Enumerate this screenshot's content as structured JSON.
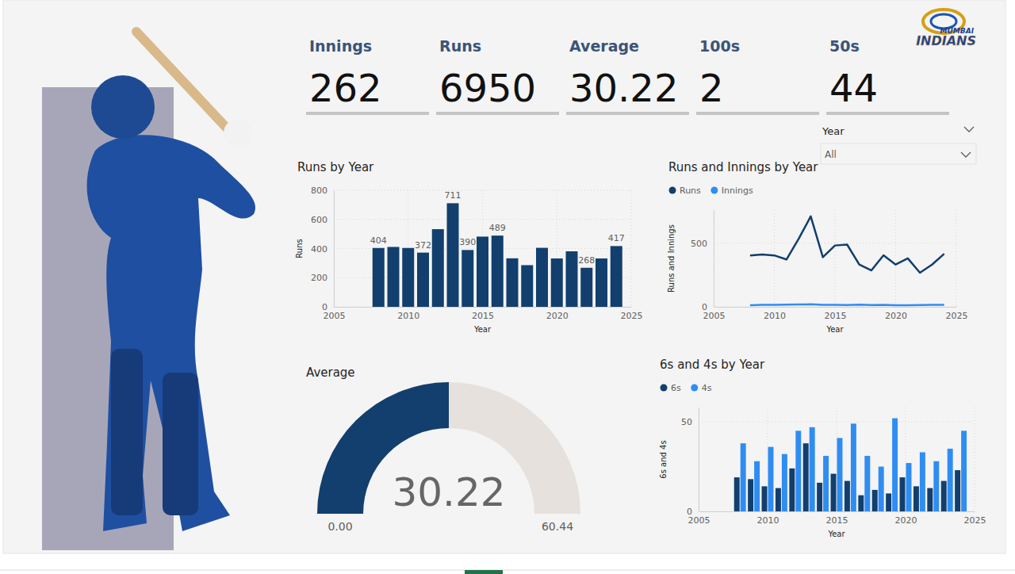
{
  "cards": [
    {
      "label": "Innings",
      "value": 262
    },
    {
      "label": "Runs",
      "value": 6950
    },
    {
      "label": "Average",
      "value": 30.22
    },
    {
      "label": "100s",
      "value": 2
    },
    {
      "label": "50s",
      "value": 44
    }
  ],
  "slicer": {
    "label": "Year",
    "value": "All"
  },
  "logo": [
    "MUMBAI",
    "INDIANS"
  ],
  "chart_data": [
    {
      "type": "bar",
      "title": "Runs by Year",
      "xlabel": "Year",
      "ylabel": "Runs",
      "x": [
        2008,
        2009,
        2010,
        2011,
        2012,
        2013,
        2014,
        2015,
        2016,
        2017,
        2018,
        2019,
        2020,
        2021,
        2022,
        2023,
        2024
      ],
      "values": [
        404,
        411,
        404,
        372,
        533,
        711,
        390,
        482,
        489,
        333,
        286,
        405,
        332,
        381,
        268,
        332,
        417
      ],
      "value_labels": [
        "404",
        null,
        null,
        "372",
        null,
        "711",
        "390",
        null,
        "489",
        null,
        null,
        null,
        null,
        null,
        "268",
        null,
        "417"
      ],
      "data_labels": true,
      "color": "#123f6d",
      "xlim": [
        2005,
        2025
      ],
      "xticks": [
        2005,
        2010,
        2015,
        2020,
        2025
      ],
      "ylim": [
        0,
        800
      ],
      "yticks": [
        0,
        200,
        400,
        600,
        800
      ],
      "grid": true
    },
    {
      "type": "line",
      "title": "Runs and Innings by Year",
      "xlabel": "Year",
      "ylabel": "Runs and Innings",
      "x": [
        2008,
        2009,
        2010,
        2011,
        2012,
        2013,
        2014,
        2015,
        2016,
        2017,
        2018,
        2019,
        2020,
        2021,
        2022,
        2023,
        2024
      ],
      "series": [
        {
          "name": "Runs",
          "color": "#123f6d",
          "values": [
            404,
            411,
            404,
            372,
            533,
            711,
            390,
            482,
            489,
            333,
            286,
            405,
            332,
            381,
            268,
            332,
            417
          ]
        },
        {
          "name": "Innings",
          "color": "#2f8df2",
          "values": [
            13,
            16,
            16,
            17,
            18,
            20,
            15,
            16,
            14,
            17,
            14,
            15,
            13,
            13,
            14,
            16,
            15
          ]
        }
      ],
      "legend": "top-left",
      "xlim": [
        2005,
        2025
      ],
      "xticks": [
        2005,
        2010,
        2015,
        2020,
        2025
      ],
      "ylim": [
        0,
        760
      ],
      "yticks": [
        0,
        500
      ],
      "grid": true
    },
    {
      "type": "gauge",
      "title": "Average",
      "value": 30.22,
      "color": "#123f6d",
      "ylim": [
        0,
        60.44
      ],
      "yticks": [
        {
          "value": 0,
          "label": "0.00"
        },
        {
          "value": 60.44,
          "label": "60.44"
        }
      ]
    },
    {
      "type": "bar",
      "title": "6s and 4s by Year",
      "xlabel": "Year",
      "ylabel": "6s and 4s",
      "x": [
        2008,
        2009,
        2010,
        2011,
        2012,
        2013,
        2014,
        2015,
        2016,
        2017,
        2018,
        2019,
        2020,
        2021,
        2022,
        2023,
        2024
      ],
      "series": [
        {
          "name": "6s",
          "color": "#123f6d",
          "values": [
            19,
            18,
            14,
            13,
            24,
            38,
            16,
            21,
            17,
            9,
            12,
            10,
            19,
            14,
            13,
            17,
            23
          ]
        },
        {
          "name": "4s",
          "color": "#2f8df2",
          "values": [
            38,
            28,
            36,
            32,
            45,
            47,
            31,
            41,
            49,
            31,
            25,
            52,
            27,
            33,
            28,
            35,
            45
          ]
        }
      ],
      "legend": "top-left",
      "xlim": [
        2005,
        2025
      ],
      "xticks": [
        2005,
        2010,
        2015,
        2020,
        2025
      ],
      "ylim": [
        0,
        58
      ],
      "yticks": [
        0,
        50
      ],
      "grid": true
    }
  ]
}
